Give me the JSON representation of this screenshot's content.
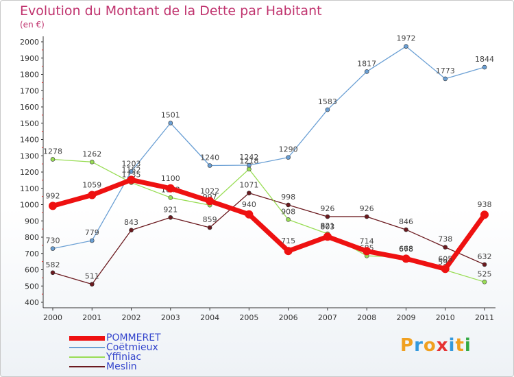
{
  "chart_data": {
    "type": "line",
    "title": "Evolution du Montant de la Dette par Habitant",
    "subtitle": "(en €)",
    "x": [
      "2000",
      "2001",
      "2002",
      "2003",
      "2004",
      "2005",
      "2006",
      "2007",
      "2008",
      "2009",
      "2010",
      "2011"
    ],
    "ylim": [
      400,
      2000
    ],
    "yticks": [
      400,
      500,
      600,
      700,
      800,
      900,
      1000,
      1100,
      1200,
      1300,
      1400,
      1500,
      1600,
      1700,
      1800,
      1900,
      2000
    ],
    "grid": false,
    "legend_placement": "bottom-left",
    "series": [
      {
        "name": "Meslin",
        "color": "#6b1a1f",
        "width": 1.3,
        "values": [
          582,
          511,
          843,
          921,
          859,
          1071,
          998,
          926,
          926,
          846,
          738,
          632
        ]
      },
      {
        "name": "Yffiniac",
        "color": "#99dd55",
        "width": 1.3,
        "values": [
          1278,
          1262,
          1135,
          1043,
          997,
          1218,
          908,
          821,
          685,
          678,
          598,
          525
        ]
      },
      {
        "name": "Coëtmieux",
        "color": "#6a9fd4",
        "width": 1.3,
        "values": [
          730,
          779,
          1203,
          1501,
          1240,
          1242,
          1290,
          1583,
          1817,
          1972,
          1773,
          1844
        ]
      },
      {
        "name": "POMMERET",
        "color": "#ee1111",
        "width": 7,
        "values": [
          992,
          1059,
          1152,
          1100,
          1022,
          940,
          715,
          803,
          714,
          668,
          605,
          938
        ]
      }
    ]
  },
  "legend": [
    {
      "label": "POMMERET",
      "color": "#ee1111",
      "thickness": 7
    },
    {
      "label": "Coëtmieux",
      "color": "#6a9fd4",
      "thickness": 2
    },
    {
      "label": "Yffiniac",
      "color": "#99dd55",
      "thickness": 2
    },
    {
      "label": "Meslin",
      "color": "#6b1a1f",
      "thickness": 2
    }
  ],
  "logo": {
    "text": "Proxiti",
    "colors": [
      "#f0a020",
      "#3399dd",
      "#f0a020",
      "#e63333",
      "#3399dd",
      "#f0a020",
      "#33aa44"
    ]
  }
}
